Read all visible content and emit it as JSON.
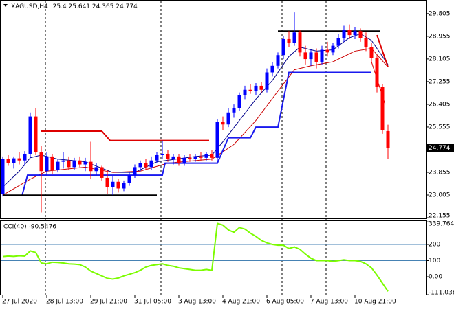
{
  "chart_data": [
    {
      "type": "candlestick",
      "title": "XAGUSD,H4",
      "categories": [
        "27 Jul 2020",
        null,
        null,
        null,
        null,
        null,
        null,
        null,
        "28 Jul 13:00",
        null,
        null,
        null,
        null,
        null,
        null,
        null,
        "29 Jul 21:00",
        null,
        null,
        null,
        null,
        null,
        null,
        null,
        "31 Jul 05:00",
        null,
        null,
        null,
        null,
        null,
        null,
        null,
        "3 Aug 13:00",
        null,
        null,
        null,
        null,
        null,
        null,
        null,
        "4 Aug 21:00",
        null,
        null,
        null,
        null,
        null,
        null,
        null,
        "6 Aug 05:00",
        null,
        null,
        null,
        null,
        null,
        null,
        null,
        "7 Aug 13:00",
        null,
        null,
        null,
        null,
        null,
        null,
        null,
        "10 Aug 21:00",
        null,
        null,
        null,
        null,
        null,
        null
      ],
      "open": [
        23.05,
        24.35,
        24.2,
        24.38,
        24.3,
        24.55,
        25.95,
        24.6,
        23.9,
        24.45,
        23.95,
        24.25,
        24.3,
        24.05,
        24.3,
        24.15,
        24.25,
        23.9,
        24.05,
        23.65,
        23.3,
        23.5,
        23.25,
        23.45,
        23.75,
        24.05,
        24.2,
        24.05,
        24.3,
        24.5,
        24.55,
        24.35,
        24.45,
        24.2,
        24.4,
        24.35,
        24.45,
        24.4,
        24.55,
        24.4,
        25.75,
        25.65,
        26.1,
        26.25,
        26.75,
        26.95,
        26.9,
        27.1,
        26.95,
        27.6,
        27.85,
        28.25,
        28.85,
        28.7,
        29.1,
        28.35,
        28.1,
        28.35,
        28.0,
        28.45,
        28.35,
        28.6,
        28.9,
        29.2,
        29.0,
        29.15,
        28.9,
        28.55,
        28.15,
        27.05,
        25.4
      ],
      "high": [
        24.45,
        24.5,
        24.45,
        24.6,
        24.65,
        26.1,
        26.25,
        24.85,
        24.6,
        24.55,
        24.35,
        24.6,
        24.45,
        24.4,
        24.45,
        24.4,
        25.0,
        24.2,
        24.1,
        23.95,
        23.7,
        23.6,
        23.55,
        23.85,
        24.15,
        24.3,
        24.35,
        24.45,
        24.6,
        25.05,
        24.7,
        24.55,
        24.55,
        24.5,
        24.55,
        24.55,
        24.6,
        24.6,
        24.7,
        25.85,
        25.95,
        26.25,
        26.4,
        26.85,
        27.1,
        27.15,
        27.2,
        27.25,
        27.75,
        28.0,
        28.35,
        28.95,
        29.15,
        29.85,
        29.2,
        28.6,
        28.45,
        28.5,
        28.6,
        28.75,
        28.7,
        29.05,
        29.35,
        29.4,
        29.3,
        29.25,
        29.1,
        28.7,
        28.25,
        27.15,
        25.641
      ],
      "low": [
        22.95,
        24.1,
        24.0,
        24.15,
        24.1,
        24.4,
        24.5,
        22.35,
        23.75,
        23.8,
        23.85,
        24.0,
        23.95,
        23.95,
        24.05,
        23.9,
        23.6,
        23.75,
        23.55,
        23.05,
        23.0,
        23.1,
        23.15,
        23.35,
        23.65,
        23.9,
        23.95,
        23.95,
        24.2,
        24.35,
        24.25,
        24.15,
        24.1,
        24.1,
        24.25,
        24.25,
        24.3,
        24.3,
        24.3,
        24.3,
        25.45,
        25.55,
        25.9,
        26.15,
        26.6,
        26.8,
        26.75,
        26.85,
        26.85,
        27.45,
        27.75,
        28.1,
        28.55,
        28.6,
        28.2,
        27.9,
        27.85,
        27.75,
        27.9,
        28.2,
        28.25,
        28.5,
        28.75,
        28.85,
        28.85,
        28.75,
        28.4,
        27.95,
        26.85,
        25.3,
        24.365
      ],
      "close": [
        24.35,
        24.2,
        24.38,
        24.3,
        24.55,
        25.95,
        24.6,
        23.9,
        24.45,
        23.95,
        24.25,
        24.3,
        24.05,
        24.3,
        24.15,
        24.25,
        23.9,
        24.05,
        23.65,
        23.3,
        23.5,
        23.25,
        23.45,
        23.75,
        24.05,
        24.2,
        24.05,
        24.3,
        24.5,
        24.55,
        24.35,
        24.45,
        24.2,
        24.4,
        24.35,
        24.45,
        24.4,
        24.55,
        24.4,
        25.75,
        25.65,
        26.1,
        26.25,
        26.75,
        26.95,
        26.9,
        27.1,
        26.95,
        27.6,
        27.85,
        28.25,
        28.85,
        28.7,
        29.1,
        28.35,
        28.1,
        28.35,
        28.0,
        28.45,
        28.35,
        28.6,
        28.9,
        29.2,
        29.0,
        29.15,
        28.9,
        28.55,
        28.15,
        27.05,
        25.45,
        24.774
      ],
      "up_color": "#0000ff",
      "down_color": "#ff0000",
      "ylim": [
        22.13,
        30.29
      ],
      "yticks": [
        29.805,
        28.955,
        28.105,
        27.255,
        26.405,
        25.555,
        23.855,
        23.005,
        22.155
      ],
      "overlays": [
        {
          "color": "#00008b",
          "width": 1,
          "points": [
            [
              0,
              23.3
            ],
            [
              3,
              23.9
            ],
            [
              5,
              24.4
            ],
            [
              7,
              24.5
            ],
            [
              10,
              24.35
            ],
            [
              15,
              24.25
            ],
            [
              20,
              23.85
            ],
            [
              24,
              23.85
            ],
            [
              28,
              24.25
            ],
            [
              35,
              24.45
            ],
            [
              38,
              24.5
            ],
            [
              40,
              25.0
            ],
            [
              43,
              25.8
            ],
            [
              46,
              26.6
            ],
            [
              49,
              27.3
            ],
            [
              52,
              28.2
            ],
            [
              54,
              28.55
            ],
            [
              57,
              28.4
            ],
            [
              60,
              28.45
            ],
            [
              63,
              28.9
            ],
            [
              65,
              29.05
            ],
            [
              67,
              28.8
            ],
            [
              70,
              27.9
            ]
          ]
        },
        {
          "color": "#cc0000",
          "width": 1,
          "points": [
            [
              0,
              23.0
            ],
            [
              5,
              23.6
            ],
            [
              8,
              23.9
            ],
            [
              15,
              24.05
            ],
            [
              20,
              23.85
            ],
            [
              25,
              23.9
            ],
            [
              30,
              24.2
            ],
            [
              38,
              24.35
            ],
            [
              42,
              24.9
            ],
            [
              46,
              25.8
            ],
            [
              50,
              26.9
            ],
            [
              53,
              27.7
            ],
            [
              56,
              27.85
            ],
            [
              60,
              28.0
            ],
            [
              64,
              28.4
            ],
            [
              67,
              28.5
            ],
            [
              70,
              27.8
            ]
          ]
        },
        {
          "color": "#1a1aee",
          "width": 2,
          "points": [
            [
              0,
              22.98
            ],
            [
              3.5,
              22.98
            ],
            [
              4.5,
              23.75
            ],
            [
              29,
              23.75
            ],
            [
              29.5,
              24.2
            ],
            [
              39,
              24.2
            ],
            [
              41,
              25.15
            ],
            [
              45,
              25.15
            ],
            [
              46,
              25.55
            ],
            [
              50,
              25.55
            ],
            [
              52,
              27.6
            ],
            [
              67,
              27.6
            ]
          ]
        },
        {
          "color": "#dd0000",
          "width": 2,
          "points": [
            [
              7,
              25.4
            ],
            [
              18,
              25.4
            ],
            [
              19.5,
              25.05
            ],
            [
              37.5,
              25.05
            ]
          ]
        },
        {
          "color": "#000000",
          "width": 2,
          "points": [
            [
              0,
              23.0
            ],
            [
              28,
              23.0
            ]
          ]
        },
        {
          "color": "#000000",
          "width": 2,
          "points": [
            [
              50,
              29.15
            ],
            [
              68.5,
              29.15
            ]
          ]
        },
        {
          "color": "#dd0000",
          "width": 2,
          "points": [
            [
              68,
              29.0
            ],
            [
              70,
              27.8
            ]
          ]
        },
        {
          "color": "#dd0000",
          "width": 1,
          "points": [
            [
              67,
              28.0
            ],
            [
              69.5,
              26.4
            ]
          ]
        }
      ]
    },
    {
      "type": "line",
      "title": "CCI(40) -90.5476",
      "color": "#7cfc00",
      "values": [
        125,
        128,
        126,
        130,
        128,
        160,
        150,
        85,
        80,
        90,
        88,
        85,
        80,
        78,
        75,
        60,
        35,
        20,
        5,
        -10,
        -15,
        -8,
        5,
        15,
        25,
        40,
        60,
        70,
        75,
        80,
        70,
        65,
        55,
        50,
        45,
        40,
        40,
        45,
        40,
        330,
        320,
        290,
        275,
        305,
        295,
        270,
        250,
        225,
        210,
        200,
        195,
        195,
        175,
        185,
        170,
        140,
        115,
        100,
        100,
        100,
        95,
        100,
        105,
        100,
        100,
        95,
        80,
        55,
        10,
        -40,
        -90.5476
      ],
      "ylim": [
        -115,
        349
      ],
      "yticks": [
        339.7644,
        200,
        100,
        {
          "value": 0,
          "label": "0.00"
        },
        -111.038
      ],
      "levels": [
        200,
        100
      ],
      "level_color": "#4682b4"
    }
  ]
}
